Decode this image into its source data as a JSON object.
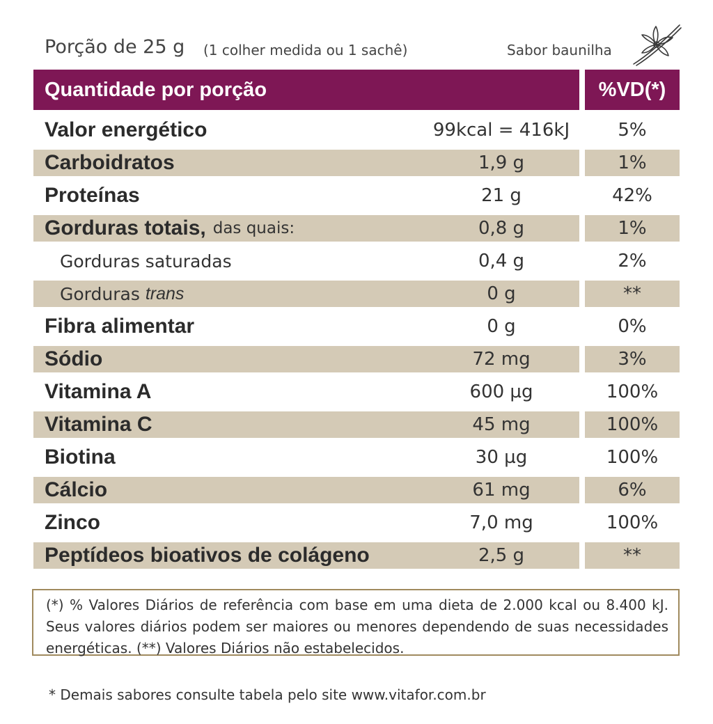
{
  "serving": {
    "label": "Porção de 25 g",
    "note": "(1 colher medida ou 1 sachê)",
    "flavor": "Sabor baunilha",
    "flavor_icon": "vanilla-flower-icon"
  },
  "table": {
    "header_left": "Quantidade por porção",
    "header_right": "%VD(*)",
    "rows": [
      {
        "name": "Valor energético",
        "amount": "99kcal = 416kJ",
        "dv": "5%"
      },
      {
        "name": "Carboidratos",
        "amount": "1,9 g",
        "dv": "1%"
      },
      {
        "name": "Proteínas",
        "amount": "21 g",
        "dv": "42%"
      },
      {
        "name": "Gorduras totais,",
        "suffix": "das quais:",
        "amount": "0,8 g",
        "dv": "1%"
      },
      {
        "name": "Gorduras saturadas",
        "amount": "0,4 g",
        "dv": "2%"
      },
      {
        "name": "Gorduras",
        "italic": "trans",
        "amount": "0 g",
        "dv": "**"
      },
      {
        "name": "Fibra alimentar",
        "amount": "0 g",
        "dv": "0%"
      },
      {
        "name": "Sódio",
        "amount": "72 mg",
        "dv": "3%"
      },
      {
        "name": "Vitamina A",
        "amount": "600 µg",
        "dv": "100%"
      },
      {
        "name": "Vitamina C",
        "amount": "45 mg",
        "dv": "100%"
      },
      {
        "name": "Biotina",
        "amount": "30 µg",
        "dv": "100%"
      },
      {
        "name": "Cálcio",
        "amount": "61 mg",
        "dv": "6%"
      },
      {
        "name": "Zinco",
        "amount": "7,0 mg",
        "dv": "100%"
      },
      {
        "name": "Peptídeos bioativos de colágeno",
        "amount": "2,5 g",
        "dv": "**"
      }
    ]
  },
  "footnote": {
    "line1": "(*) % Valores Diários de referência com base em uma dieta de 2.000 kcal ou 8.400 kJ. Seus valores diários podem ser maiores ou menores dependendo de suas necessidades energéticas. (**) Valores Diários não estabelecidos."
  },
  "bottom_note": "* Demais sabores consulte tabela pelo site www.vitafor.com.br",
  "colors": {
    "header": "#7e1755",
    "shade": "#d4cab6",
    "border": "#a08a5e"
  }
}
